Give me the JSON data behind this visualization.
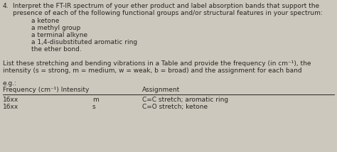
{
  "background_color": "#cdc8be",
  "text_color": "#2a2520",
  "font_size": 6.5,
  "number": "4.",
  "line1": "Interpret the FT-IR spectrum of your ether product and label absorption bands that support the",
  "line2": "presence of each of the following functional groups and/or structural features in your spectrum:",
  "bullet1": "a ketone",
  "bullet2": "a methyl group",
  "bullet3": "a terminal alkyne",
  "bullet4": "a 1,4-disubstituted aromatic ring",
  "bullet5": "the ether bond.",
  "para1": "List these stretching and bending vibrations in a Table and provide the frequency (in cm⁻¹), the",
  "para2": "intensity (s = strong, m = medium, w = weak, b = broad) and the assignment for each band",
  "eg": "e.g.:",
  "col1_header": "Frequency (cm⁻¹) Intensity",
  "col2_header": "Assignment",
  "row1_freq": "16xx",
  "row1_int": "m",
  "row1_assign": "C=C stretch; aromatic ring",
  "row2_freq": "16xx",
  "row2_int": "s",
  "row2_assign": "C=O stretch; ketone"
}
